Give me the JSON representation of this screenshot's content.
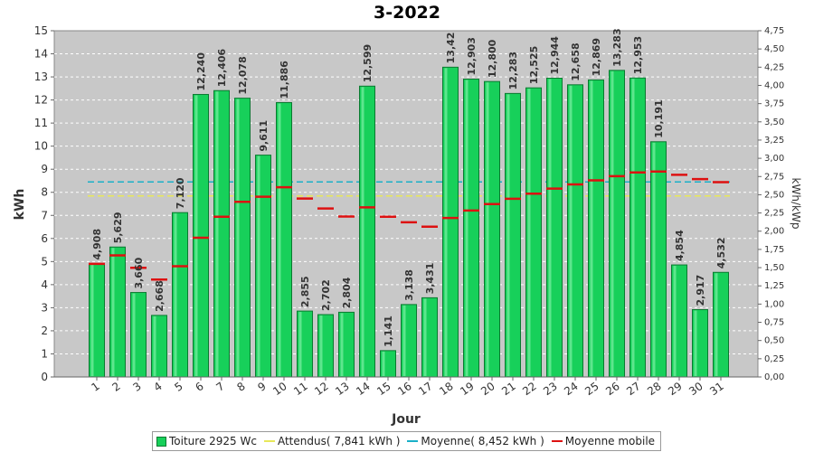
{
  "chart_data": {
    "type": "bar",
    "title": "3-2022",
    "xlabel": "Jour",
    "ylabel": "kWh",
    "y2label": "kWh/kWp",
    "ylim": [
      0,
      15
    ],
    "y2lim": [
      0,
      4.75
    ],
    "yticks": [
      "0",
      "1",
      "2",
      "3",
      "4",
      "5",
      "6",
      "7",
      "8",
      "9",
      "10",
      "11",
      "12",
      "13",
      "14",
      "15"
    ],
    "y2ticks": [
      "0,00",
      "0,25",
      "0,50",
      "0,75",
      "1,00",
      "1,25",
      "1,50",
      "1,75",
      "2,00",
      "2,25",
      "2,50",
      "2,75",
      "3,00",
      "3,25",
      "3,50",
      "3,75",
      "4,00",
      "4,25",
      "4,50",
      "4,75"
    ],
    "categories": [
      "1",
      "2",
      "3",
      "4",
      "5",
      "6",
      "7",
      "8",
      "9",
      "10",
      "11",
      "12",
      "13",
      "14",
      "15",
      "16",
      "17",
      "18",
      "19",
      "20",
      "21",
      "22",
      "23",
      "24",
      "25",
      "26",
      "27",
      "28",
      "29",
      "30",
      "31"
    ],
    "values": [
      4.908,
      5.629,
      3.66,
      2.668,
      7.12,
      12.24,
      12.406,
      12.078,
      9.611,
      11.886,
      2.855,
      2.702,
      2.804,
      12.599,
      1.141,
      3.138,
      3.431,
      13.42,
      12.903,
      12.8,
      12.283,
      12.525,
      12.944,
      12.658,
      12.869,
      13.283,
      12.953,
      10.191,
      4.854,
      2.917,
      4.532
    ],
    "value_labels": [
      "4,908",
      "5,629",
      "3,660",
      "2,668",
      "7,120",
      "12,240",
      "12,406",
      "12,078",
      "9,611",
      "11,886",
      "2,855",
      "2,702",
      "2,804",
      "12,599",
      "1,141",
      "3,138",
      "3,431",
      "13,42",
      "12,903",
      "12,800",
      "12,283",
      "12,525",
      "12,944",
      "12,658",
      "12,869",
      "13,283",
      "12,953",
      "10,191",
      "4,854",
      "2,917",
      "4,532"
    ],
    "moving_average": [
      4.9,
      5.27,
      4.73,
      4.22,
      4.8,
      6.03,
      6.94,
      7.59,
      7.81,
      8.22,
      7.73,
      7.3,
      6.95,
      7.35,
      6.94,
      6.7,
      6.51,
      6.89,
      7.21,
      7.49,
      7.72,
      7.94,
      8.16,
      8.34,
      8.52,
      8.7,
      8.86,
      8.9,
      8.76,
      8.57,
      8.44
    ],
    "expected": 7.841,
    "average": 8.452,
    "grid": true,
    "legend_position": "bottom",
    "series": [
      {
        "name": "Toiture 2925 Wc",
        "color": "#17d05a"
      },
      {
        "name": "Attendus( 7,841 kWh )",
        "color": "#e8e85a"
      },
      {
        "name": "Moyenne( 8,452 kWh )",
        "color": "#1ab0c8"
      },
      {
        "name": "Moyenne mobile",
        "color": "#dd1111"
      }
    ]
  }
}
